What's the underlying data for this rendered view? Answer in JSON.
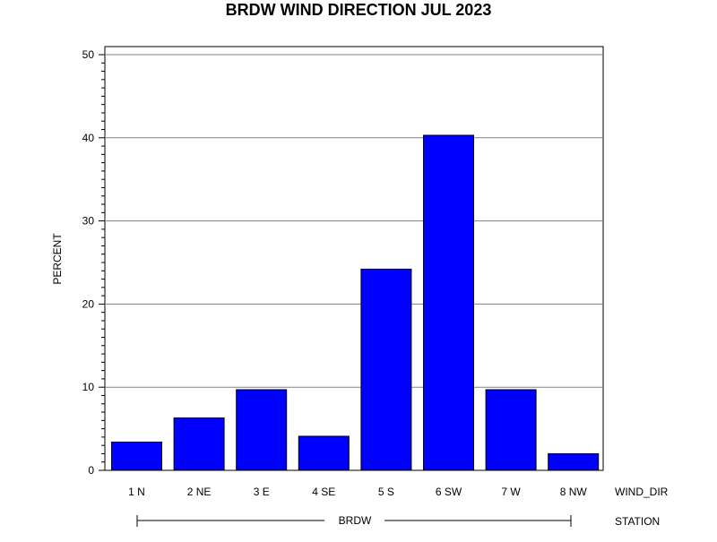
{
  "chart_data": {
    "type": "bar",
    "title": "BRDW WIND DIRECTION JUL 2023",
    "ylabel": "PERCENT",
    "xlabel": "WIND_DIR",
    "group_label": "STATION",
    "group_value": "BRDW",
    "categories": [
      "1 N",
      "2 NE",
      "3 E",
      "4 SE",
      "5 S",
      "6 SW",
      "7 W",
      "8 NW"
    ],
    "values": [
      3.4,
      6.3,
      9.7,
      4.1,
      24.2,
      40.3,
      9.7,
      2.0
    ],
    "ylim": [
      0,
      50
    ],
    "yticks": [
      "0",
      "10",
      "20",
      "30",
      "40",
      "50"
    ],
    "grid": true,
    "bar_color": "#0000ff",
    "bar_edge_color": "#000000"
  }
}
